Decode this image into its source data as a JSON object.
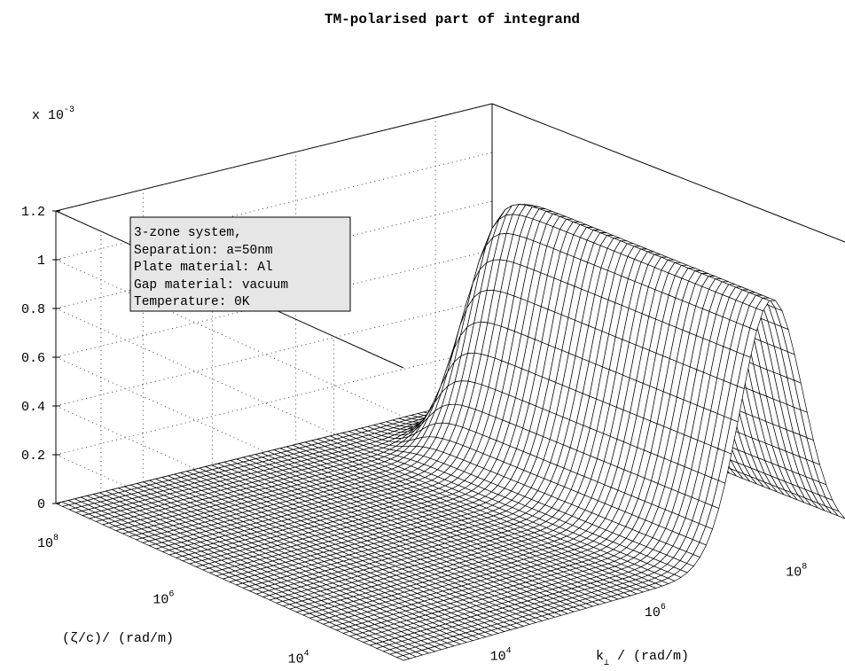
{
  "chart_data": {
    "type": "surface",
    "title": "TM-polarised part of integrand",
    "zlabel_multiplier": {
      "base": "x 10",
      "exponent": "-3"
    },
    "z_ticks": [
      "0",
      "0.2",
      "0.4",
      "0.6",
      "0.8",
      "1",
      "1.2"
    ],
    "zlim": [
      0,
      1.2
    ],
    "zeta_axis": {
      "label": "(ζ/c)/ (rad/m)",
      "scale": "log",
      "ticks": [
        {
          "base": "10",
          "exp": "4"
        },
        {
          "base": "10",
          "exp": "6"
        },
        {
          "base": "10",
          "exp": "8"
        }
      ]
    },
    "kperp_axis": {
      "label_main": "k",
      "label_sub": "⊥",
      "label_rest": " / (rad/m)",
      "scale": "log",
      "ticks": [
        {
          "base": "10",
          "exp": "4"
        },
        {
          "base": "10",
          "exp": "6"
        },
        {
          "base": "10",
          "exp": "8"
        }
      ]
    },
    "peak": {
      "z_max": 1.05,
      "kperp_center_log10": 8.0,
      "zeta_cutoff_log10": 8.0
    },
    "annotation": [
      "3-zone system,",
      "Separation: a=50nm",
      "Plate material: Al",
      "Gap material: vacuum",
      "Temperature: 0K"
    ],
    "grid": true,
    "colors": {
      "surface_fill": "#ffffff",
      "surface_edge": "#000000",
      "legend_bg": "#e6e6e6"
    }
  }
}
